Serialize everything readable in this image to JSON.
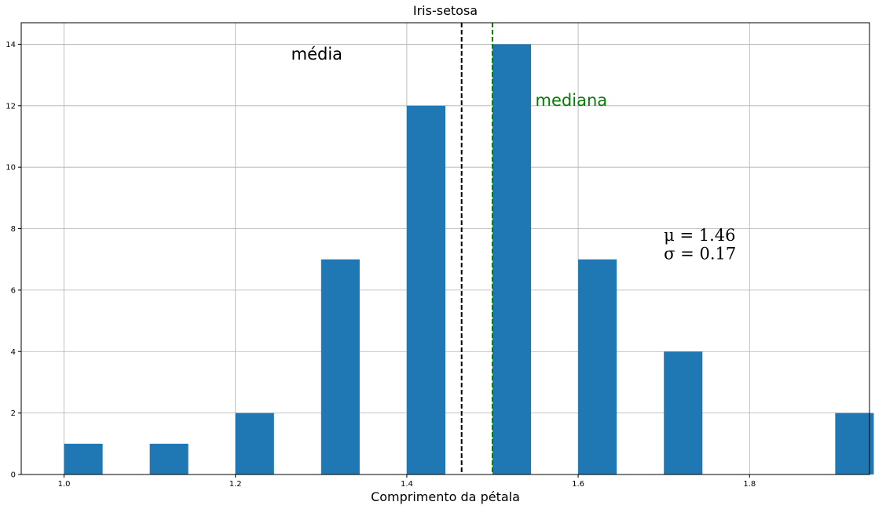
{
  "chart_data": {
    "type": "bar",
    "title": "Iris-setosa",
    "xlabel": "Comprimento da pétala",
    "ylabel": "",
    "xlim": [
      0.95,
      1.94
    ],
    "ylim": [
      0,
      14.7
    ],
    "bar_width": 0.045,
    "x": [
      1.0,
      1.1,
      1.2,
      1.3,
      1.4,
      1.5,
      1.6,
      1.7,
      1.9
    ],
    "values": [
      1,
      1,
      2,
      7,
      12,
      14,
      7,
      4,
      2
    ],
    "x_ticks": [
      1.0,
      1.2,
      1.4,
      1.6,
      1.8
    ],
    "x_tick_labels": [
      "1.0",
      "1.2",
      "1.4",
      "1.6",
      "1.8"
    ],
    "y_ticks": [
      0,
      2,
      4,
      6,
      8,
      10,
      12,
      14
    ],
    "y_tick_labels": [
      "0",
      "2",
      "4",
      "6",
      "8",
      "10",
      "12",
      "14"
    ],
    "grid": true,
    "bar_color": "#1f77b4",
    "mean_line": {
      "x": 1.464,
      "color": "#000000",
      "style": "dashed"
    },
    "median_line": {
      "x": 1.5,
      "color": "#008000",
      "style": "dashed"
    },
    "annotations": [
      {
        "text": "média",
        "x": 1.265,
        "y": 13.5,
        "color": "#000000"
      },
      {
        "text": "mediana",
        "x": 1.55,
        "y": 12.0,
        "color": "#008000"
      }
    ],
    "stats": {
      "mu_text": "μ = 1.46",
      "sigma_text": "σ = 0.17",
      "x": 1.7,
      "y_mu": 7.6,
      "y_sigma": 7.0
    }
  }
}
